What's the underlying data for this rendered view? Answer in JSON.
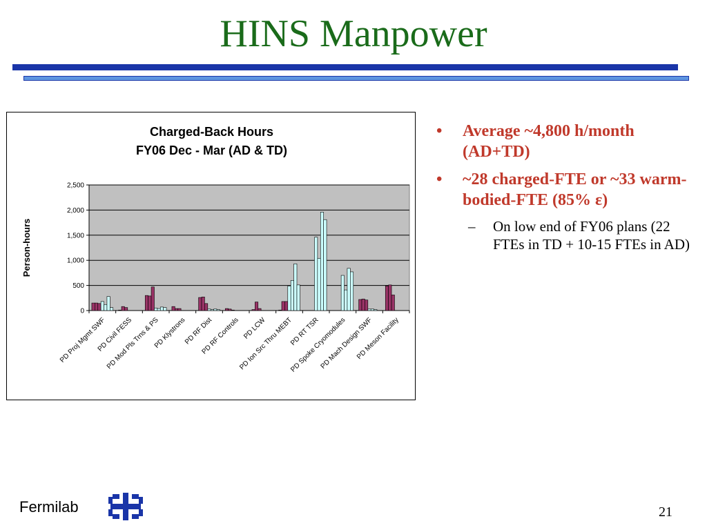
{
  "slide": {
    "title": "HINS Manpower",
    "footer_org": "Fermilab",
    "page_number": "21",
    "logo_icon": "fermilab-logo-icon",
    "colors": {
      "title": "#1a6b1a",
      "rule": "#1a35a8",
      "rule_light": "#5e95e0",
      "bullet": "#c0392b"
    }
  },
  "bullets": [
    {
      "text": "Average ~4,800 h/month (AD+TD)",
      "subs": []
    },
    {
      "text": "~28 charged-FTE or ~33 warm-bodied-FTE (85% ε)",
      "subs": [
        "On low end of FY06 plans (22 FTEs in TD + 10-15 FTEs in AD)"
      ]
    }
  ],
  "chart_data": {
    "type": "bar",
    "title": [
      "Charged-Back Hours",
      "FY06 Dec - Mar (AD & TD)"
    ],
    "ylabel": "Person-hours",
    "xlabel": "",
    "ylim": [
      0,
      2500
    ],
    "yticks": [
      0,
      500,
      1000,
      1500,
      2000,
      2500
    ],
    "ytick_labels": [
      "0",
      "500",
      "1,000",
      "1,500",
      "2,000",
      "2,500"
    ],
    "grid": true,
    "plot_background": "#c0c0c0",
    "categories": [
      "PD Proj Mgmt SWF",
      "PD Civil FESS",
      "PD Mod Pls Trns & PS",
      "PD Klystrons",
      "PD RF Dist",
      "PD RF Controls",
      "PD LCW",
      "PD Ion Src Thru MEBT",
      "PD RT TSR",
      "PD Spoke Cryomodules",
      "PD Mach Design SWF",
      "PD Meson Facility"
    ],
    "series": [
      {
        "color": "#993366",
        "values": [
          150,
          10,
          300,
          80,
          260,
          40,
          20,
          10,
          0,
          0,
          220,
          490
        ]
      },
      {
        "color": "#993366",
        "values": [
          150,
          80,
          290,
          40,
          270,
          30,
          170,
          180,
          0,
          0,
          230,
          510
        ]
      },
      {
        "color": "#993366",
        "values": [
          140,
          60,
          470,
          40,
          140,
          10,
          40,
          180,
          0,
          0,
          210,
          310
        ]
      },
      {
        "color": "#ccffff",
        "values": [
          180,
          0,
          50,
          0,
          30,
          0,
          0,
          490,
          1460,
          700,
          30,
          0
        ]
      },
      {
        "color": "#ccffff",
        "values": [
          120,
          0,
          40,
          0,
          20,
          0,
          0,
          600,
          1040,
          410,
          30,
          0
        ]
      },
      {
        "color": "#ccffff",
        "values": [
          280,
          0,
          70,
          0,
          30,
          0,
          0,
          930,
          1960,
          840,
          20,
          0
        ]
      },
      {
        "color": "#ccffff",
        "values": [
          60,
          0,
          60,
          0,
          20,
          0,
          0,
          510,
          1810,
          770,
          0,
          0
        ]
      }
    ]
  }
}
